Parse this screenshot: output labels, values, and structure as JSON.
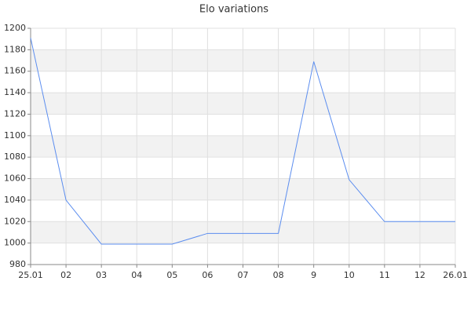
{
  "chart_data": {
    "type": "line",
    "title": "Elo variations",
    "categories": [
      "25.01",
      "02",
      "03",
      "04",
      "05",
      "06",
      "07",
      "08",
      "9",
      "10",
      "11",
      "12",
      "26.01"
    ],
    "series": [
      {
        "name": "Elo",
        "color": "#5b8def",
        "values": [
          1191,
          1040,
          999,
          999,
          999,
          1009,
          1009,
          1009,
          1169,
          1059,
          1020,
          1020,
          1020
        ]
      }
    ],
    "ylim": [
      980,
      1200
    ],
    "yticks": [
      980,
      1000,
      1020,
      1040,
      1060,
      1080,
      1100,
      1120,
      1140,
      1160,
      1180,
      1200
    ],
    "grid": true
  }
}
